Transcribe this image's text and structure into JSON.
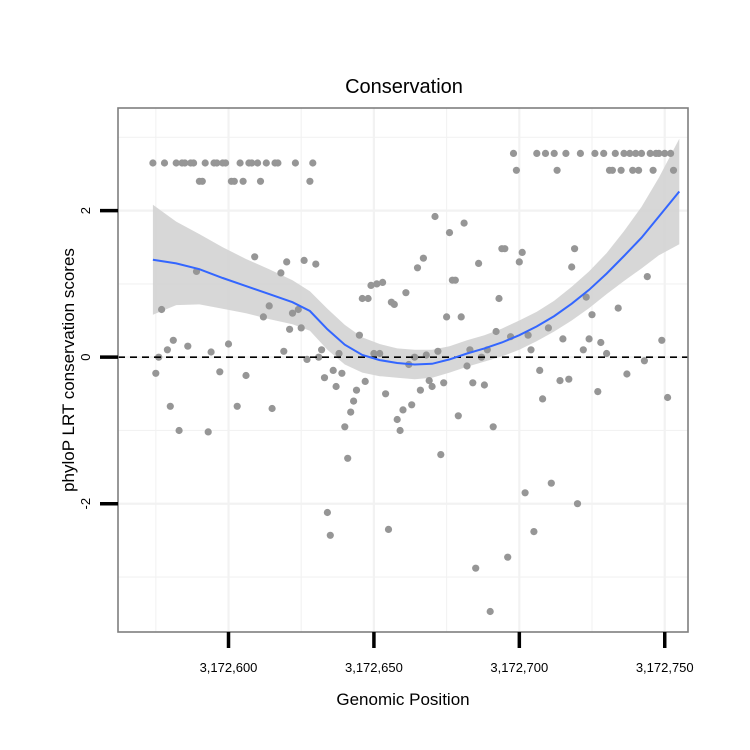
{
  "chart_data": {
    "type": "scatter",
    "title": "Conservation",
    "xlabel": "Genomic Position",
    "ylabel": "phyloP LRT conservation scores",
    "xlim": [
      3172562,
      3172758
    ],
    "ylim": [
      -3.75,
      3.4
    ],
    "x_ticks": [
      {
        "value": 3172600,
        "label": "3,172,600"
      },
      {
        "value": 3172650,
        "label": "3,172,650"
      },
      {
        "value": 3172700,
        "label": "3,172,700"
      },
      {
        "value": 3172750,
        "label": "3,172,750"
      }
    ],
    "y_ticks": [
      {
        "value": -2,
        "label": "-2"
      },
      {
        "value": 0,
        "label": "0"
      },
      {
        "value": 2,
        "label": "2"
      }
    ],
    "grid": true,
    "reference_line": {
      "y": 0,
      "style": "dashed"
    },
    "colors": {
      "points": "#969696",
      "smooth": "#3366ff",
      "band": "#d3d3d3",
      "grid": "#f2f2f2",
      "frame": "#7f7f7f"
    },
    "points": [
      [
        3172574,
        2.65
      ],
      [
        3172575,
        -0.22
      ],
      [
        3172576,
        0.0
      ],
      [
        3172577,
        0.65
      ],
      [
        3172578,
        2.65
      ],
      [
        3172579,
        0.1
      ],
      [
        3172580,
        -0.67
      ],
      [
        3172581,
        0.23
      ],
      [
        3172582,
        2.65
      ],
      [
        3172583,
        -1.0
      ],
      [
        3172584,
        2.65
      ],
      [
        3172585,
        2.65
      ],
      [
        3172586,
        0.15
      ],
      [
        3172587,
        2.65
      ],
      [
        3172588,
        2.65
      ],
      [
        3172589,
        1.17
      ],
      [
        3172590,
        2.4
      ],
      [
        3172591,
        2.4
      ],
      [
        3172592,
        2.65
      ],
      [
        3172593,
        -1.02
      ],
      [
        3172594,
        0.07
      ],
      [
        3172595,
        2.65
      ],
      [
        3172596,
        2.65
      ],
      [
        3172597,
        -0.2
      ],
      [
        3172598,
        2.65
      ],
      [
        3172599,
        2.65
      ],
      [
        3172600,
        0.18
      ],
      [
        3172601,
        2.4
      ],
      [
        3172602,
        2.4
      ],
      [
        3172603,
        -0.67
      ],
      [
        3172604,
        2.65
      ],
      [
        3172605,
        2.4
      ],
      [
        3172606,
        -0.25
      ],
      [
        3172607,
        2.65
      ],
      [
        3172608,
        2.65
      ],
      [
        3172609,
        1.37
      ],
      [
        3172610,
        2.65
      ],
      [
        3172611,
        2.4
      ],
      [
        3172612,
        0.55
      ],
      [
        3172613,
        2.65
      ],
      [
        3172614,
        0.7
      ],
      [
        3172615,
        -0.7
      ],
      [
        3172616,
        2.65
      ],
      [
        3172617,
        2.65
      ],
      [
        3172618,
        1.15
      ],
      [
        3172619,
        0.08
      ],
      [
        3172620,
        1.3
      ],
      [
        3172621,
        0.38
      ],
      [
        3172622,
        0.6
      ],
      [
        3172623,
        2.65
      ],
      [
        3172624,
        0.65
      ],
      [
        3172625,
        0.4
      ],
      [
        3172626,
        1.32
      ],
      [
        3172627,
        -0.03
      ],
      [
        3172628,
        2.4
      ],
      [
        3172629,
        2.65
      ],
      [
        3172630,
        1.27
      ],
      [
        3172631,
        0.0
      ],
      [
        3172632,
        0.1
      ],
      [
        3172633,
        -0.28
      ],
      [
        3172634,
        -2.12
      ],
      [
        3172635,
        -2.43
      ],
      [
        3172636,
        -0.18
      ],
      [
        3172637,
        -0.4
      ],
      [
        3172638,
        0.05
      ],
      [
        3172639,
        -0.22
      ],
      [
        3172640,
        -0.95
      ],
      [
        3172641,
        -1.38
      ],
      [
        3172642,
        -0.75
      ],
      [
        3172643,
        -0.6
      ],
      [
        3172644,
        -0.45
      ],
      [
        3172645,
        0.3
      ],
      [
        3172646,
        0.8
      ],
      [
        3172647,
        -0.33
      ],
      [
        3172648,
        0.8
      ],
      [
        3172649,
        0.98
      ],
      [
        3172650,
        0.05
      ],
      [
        3172651,
        1.0
      ],
      [
        3172652,
        0.05
      ],
      [
        3172653,
        1.02
      ],
      [
        3172654,
        -0.5
      ],
      [
        3172655,
        -2.35
      ],
      [
        3172656,
        0.75
      ],
      [
        3172657,
        0.72
      ],
      [
        3172658,
        -0.85
      ],
      [
        3172659,
        -1.0
      ],
      [
        3172660,
        -0.72
      ],
      [
        3172661,
        0.88
      ],
      [
        3172662,
        -0.1
      ],
      [
        3172663,
        -0.65
      ],
      [
        3172664,
        0.0
      ],
      [
        3172665,
        1.22
      ],
      [
        3172666,
        -0.45
      ],
      [
        3172667,
        1.35
      ],
      [
        3172668,
        0.03
      ],
      [
        3172669,
        -0.32
      ],
      [
        3172670,
        -0.4
      ],
      [
        3172671,
        1.92
      ],
      [
        3172672,
        0.08
      ],
      [
        3172673,
        -1.33
      ],
      [
        3172674,
        -0.35
      ],
      [
        3172675,
        0.55
      ],
      [
        3172676,
        1.7
      ],
      [
        3172677,
        1.05
      ],
      [
        3172678,
        1.05
      ],
      [
        3172679,
        -0.8
      ],
      [
        3172680,
        0.55
      ],
      [
        3172681,
        1.83
      ],
      [
        3172682,
        -0.12
      ],
      [
        3172683,
        0.1
      ],
      [
        3172684,
        -0.35
      ],
      [
        3172685,
        -2.88
      ],
      [
        3172686,
        1.28
      ],
      [
        3172687,
        0.0
      ],
      [
        3172688,
        -0.38
      ],
      [
        3172689,
        0.1
      ],
      [
        3172690,
        -3.47
      ],
      [
        3172691,
        -0.95
      ],
      [
        3172692,
        0.35
      ],
      [
        3172693,
        0.8
      ],
      [
        3172694,
        1.48
      ],
      [
        3172695,
        1.48
      ],
      [
        3172696,
        -2.73
      ],
      [
        3172697,
        0.28
      ],
      [
        3172698,
        2.78
      ],
      [
        3172699,
        2.55
      ],
      [
        3172700,
        1.3
      ],
      [
        3172701,
        1.43
      ],
      [
        3172702,
        -1.85
      ],
      [
        3172703,
        0.3
      ],
      [
        3172704,
        0.1
      ],
      [
        3172705,
        -2.38
      ],
      [
        3172706,
        2.78
      ],
      [
        3172707,
        -0.18
      ],
      [
        3172708,
        -0.57
      ],
      [
        3172709,
        2.78
      ],
      [
        3172710,
        0.4
      ],
      [
        3172711,
        -1.72
      ],
      [
        3172712,
        2.78
      ],
      [
        3172713,
        2.55
      ],
      [
        3172714,
        -0.32
      ],
      [
        3172715,
        0.25
      ],
      [
        3172716,
        2.78
      ],
      [
        3172717,
        -0.3
      ],
      [
        3172718,
        1.23
      ],
      [
        3172719,
        1.48
      ],
      [
        3172720,
        -2.0
      ],
      [
        3172721,
        2.78
      ],
      [
        3172722,
        0.1
      ],
      [
        3172723,
        0.82
      ],
      [
        3172724,
        0.25
      ],
      [
        3172725,
        0.58
      ],
      [
        3172726,
        2.78
      ],
      [
        3172727,
        -0.47
      ],
      [
        3172728,
        0.2
      ],
      [
        3172729,
        2.78
      ],
      [
        3172730,
        0.05
      ],
      [
        3172731,
        2.55
      ],
      [
        3172732,
        2.55
      ],
      [
        3172733,
        2.78
      ],
      [
        3172734,
        0.67
      ],
      [
        3172735,
        2.55
      ],
      [
        3172736,
        2.78
      ],
      [
        3172737,
        -0.23
      ],
      [
        3172738,
        2.78
      ],
      [
        3172739,
        2.55
      ],
      [
        3172740,
        2.78
      ],
      [
        3172741,
        2.55
      ],
      [
        3172742,
        2.78
      ],
      [
        3172743,
        -0.05
      ],
      [
        3172744,
        1.1
      ],
      [
        3172745,
        2.78
      ],
      [
        3172746,
        2.55
      ],
      [
        3172747,
        2.78
      ],
      [
        3172748,
        2.78
      ],
      [
        3172749,
        0.23
      ],
      [
        3172750,
        2.78
      ],
      [
        3172751,
        -0.55
      ],
      [
        3172752,
        2.78
      ],
      [
        3172753,
        2.55
      ]
    ],
    "smooth": {
      "x": [
        3172574,
        3172582,
        3172590,
        3172598,
        3172606,
        3172614,
        3172622,
        3172628,
        3172634,
        3172640,
        3172646,
        3172652,
        3172658,
        3172664,
        3172670,
        3172676,
        3172682,
        3172688,
        3172694,
        3172700,
        3172706,
        3172712,
        3172718,
        3172724,
        3172730,
        3172736,
        3172742,
        3172748,
        3172755
      ],
      "y": [
        1.33,
        1.28,
        1.2,
        1.08,
        0.97,
        0.86,
        0.75,
        0.63,
        0.38,
        0.17,
        0.03,
        -0.04,
        -0.08,
        -0.1,
        -0.09,
        -0.03,
        0.05,
        0.12,
        0.2,
        0.3,
        0.42,
        0.56,
        0.73,
        0.92,
        1.14,
        1.38,
        1.63,
        1.92,
        2.26
      ],
      "upper": [
        2.08,
        1.85,
        1.68,
        1.5,
        1.34,
        1.2,
        1.05,
        0.9,
        0.66,
        0.44,
        0.27,
        0.18,
        0.12,
        0.1,
        0.1,
        0.15,
        0.23,
        0.3,
        0.39,
        0.5,
        0.62,
        0.77,
        0.96,
        1.17,
        1.42,
        1.72,
        2.05,
        2.45,
        2.98
      ],
      "lower": [
        0.58,
        0.71,
        0.72,
        0.66,
        0.6,
        0.52,
        0.45,
        0.36,
        0.1,
        -0.1,
        -0.21,
        -0.26,
        -0.28,
        -0.3,
        -0.28,
        -0.21,
        -0.13,
        -0.06,
        0.01,
        0.1,
        0.22,
        0.35,
        0.5,
        0.67,
        0.86,
        1.04,
        1.21,
        1.39,
        1.54
      ]
    }
  }
}
